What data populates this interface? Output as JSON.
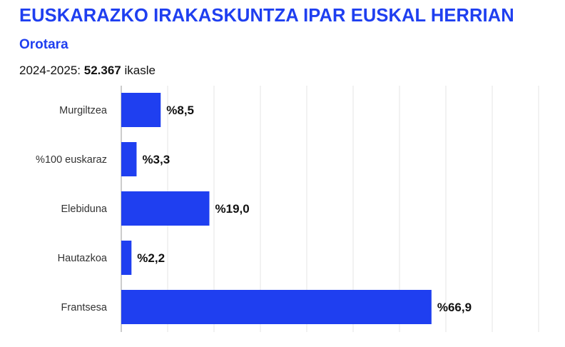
{
  "header": {
    "title": "EUSKARAZKO IRAKASKUNTZA IPAR EUSKAL HERRIAN",
    "subtitle": "Orotara",
    "note_prefix": "2024-2025: ",
    "note_value": "52.367",
    "note_suffix": " ikasle"
  },
  "colors": {
    "accent": "#1f3ff0",
    "bar": "#1f3ff0",
    "grid": "#e6e6e6",
    "axis": "#999999"
  },
  "chart_data": {
    "type": "bar",
    "orientation": "horizontal",
    "categories": [
      "Murgiltzea",
      "%100 euskaraz",
      "Elebiduna",
      "Hautazkoa",
      "Frantsesa"
    ],
    "values": [
      8.5,
      3.3,
      19.0,
      2.2,
      66.9
    ],
    "value_labels": [
      "%8,5",
      "%3,3",
      "%19,0",
      "%2,2",
      "%66,9"
    ],
    "title": "EUSKARAZKO IRAKASKUNTZA IPAR EUSKAL HERRIAN",
    "subtitle": "Orotara",
    "xlim": [
      0,
      90
    ],
    "grid": true,
    "legend": "none"
  }
}
